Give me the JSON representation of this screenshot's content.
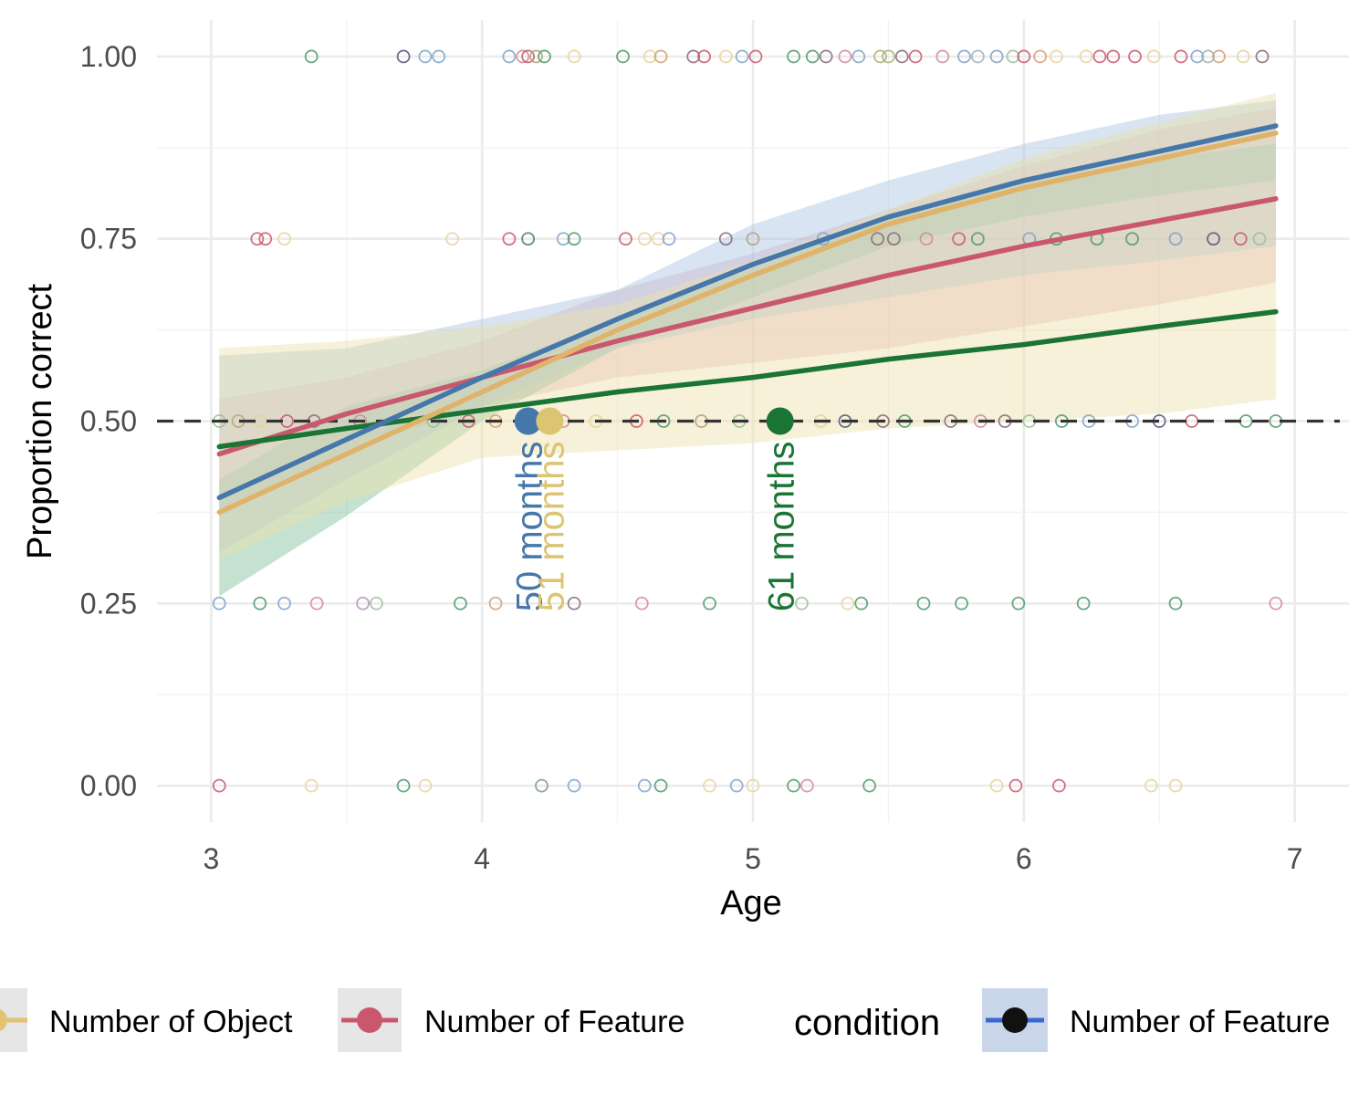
{
  "chart_data": {
    "type": "line",
    "xlabel": "Age",
    "ylabel": "Proportion correct",
    "xlim": [
      2.8,
      7.2
    ],
    "ylim": [
      -0.05,
      1.05
    ],
    "x_ticks": [
      3,
      4,
      5,
      6,
      7
    ],
    "y_ticks": [
      0.0,
      0.25,
      0.5,
      0.75,
      1.0
    ],
    "x_tick_labels": [
      "3",
      "4",
      "5",
      "6",
      "7"
    ],
    "y_tick_labels": [
      "0.00",
      "0.25",
      "0.50",
      "0.75",
      "1.00"
    ],
    "grid": true,
    "reference_line": {
      "y": 0.5,
      "style": "dashed",
      "color": "#333333"
    },
    "series": [
      {
        "key": "pink",
        "color": "#c9586e",
        "band_color": "#e8b4c0",
        "x": [
          3.03,
          3.5,
          4.0,
          4.5,
          5.0,
          5.5,
          6.0,
          6.5,
          6.93
        ],
        "y": [
          0.455,
          0.51,
          0.56,
          0.61,
          0.655,
          0.7,
          0.74,
          0.775,
          0.805
        ],
        "lower": [
          0.37,
          0.46,
          0.52,
          0.56,
          0.58,
          0.6,
          0.63,
          0.66,
          0.69
        ],
        "upper": [
          0.53,
          0.56,
          0.61,
          0.68,
          0.73,
          0.79,
          0.85,
          0.9,
          0.93
        ]
      },
      {
        "key": "green",
        "color": "#1a7535",
        "band_color": "#7fbf9a",
        "x": [
          3.03,
          3.5,
          4.0,
          4.5,
          5.0,
          5.5,
          6.0,
          6.5,
          6.93
        ],
        "y": [
          0.465,
          0.49,
          0.515,
          0.54,
          0.56,
          0.585,
          0.605,
          0.63,
          0.65
        ],
        "lower": [
          0.26,
          0.37,
          0.5,
          0.6,
          0.67,
          0.74,
          0.78,
          0.81,
          0.83
        ],
        "upper": [
          0.42,
          0.52,
          0.57,
          0.64,
          0.71,
          0.78,
          0.83,
          0.86,
          0.88
        ]
      },
      {
        "key": "blue",
        "color": "#4577ab",
        "band_color": "#a9c3e0",
        "x": [
          3.03,
          3.5,
          4.0,
          4.5,
          5.0,
          5.5,
          6.0,
          6.5,
          6.93
        ],
        "y": [
          0.395,
          0.475,
          0.56,
          0.64,
          0.715,
          0.78,
          0.83,
          0.87,
          0.905
        ],
        "lower": [
          0.32,
          0.42,
          0.52,
          0.6,
          0.64,
          0.67,
          0.7,
          0.72,
          0.74
        ],
        "upper": [
          0.59,
          0.6,
          0.64,
          0.68,
          0.77,
          0.83,
          0.88,
          0.92,
          0.94
        ]
      },
      {
        "key": "tan",
        "color": "#e0b36a",
        "band_color": "#ebe0a8",
        "x": [
          3.03,
          3.5,
          4.0,
          4.5,
          5.0,
          5.5,
          6.0,
          6.5,
          6.93
        ],
        "y": [
          0.375,
          0.455,
          0.54,
          0.625,
          0.7,
          0.77,
          0.82,
          0.86,
          0.895
        ],
        "lower": [
          0.31,
          0.39,
          0.45,
          0.46,
          0.47,
          0.49,
          0.5,
          0.51,
          0.53
        ],
        "upper": [
          0.6,
          0.61,
          0.63,
          0.66,
          0.72,
          0.79,
          0.86,
          0.91,
          0.95
        ]
      }
    ],
    "threshold_markers": [
      {
        "x": 4.17,
        "y": 0.5,
        "label": "50 months",
        "color": "#4577ab"
      },
      {
        "x": 4.25,
        "y": 0.5,
        "label": "51 months",
        "color": "#dcc472"
      },
      {
        "x": 5.1,
        "y": 0.5,
        "label": "61 months",
        "color": "#1a7535"
      }
    ],
    "raw_points": [
      [
        3.37,
        1.0,
        "#4e9a6a"
      ],
      [
        3.71,
        1.0,
        "#555577"
      ],
      [
        3.79,
        1.0,
        "#7fa3c8"
      ],
      [
        3.84,
        1.0,
        "#7fa3c8"
      ],
      [
        4.1,
        1.0,
        "#7fa3c8"
      ],
      [
        4.15,
        1.0,
        "#d48a9a"
      ],
      [
        4.17,
        1.0,
        "#c9586e"
      ],
      [
        4.2,
        1.0,
        "#b3a07a"
      ],
      [
        4.23,
        1.0,
        "#4e9a6a"
      ],
      [
        4.34,
        1.0,
        "#e6d49a"
      ],
      [
        4.52,
        1.0,
        "#4e9a6a"
      ],
      [
        4.62,
        1.0,
        "#e6d49a"
      ],
      [
        4.66,
        1.0,
        "#d4a070"
      ],
      [
        4.78,
        1.0,
        "#8a6a7a"
      ],
      [
        4.82,
        1.0,
        "#c9586e"
      ],
      [
        4.9,
        1.0,
        "#e6d49a"
      ],
      [
        4.96,
        1.0,
        "#7fa3c8"
      ],
      [
        5.01,
        1.0,
        "#c9586e"
      ],
      [
        5.15,
        1.0,
        "#4e9a6a"
      ],
      [
        5.22,
        1.0,
        "#4e9a6a"
      ],
      [
        5.27,
        1.0,
        "#8a6a7a"
      ],
      [
        5.34,
        1.0,
        "#d48a9a"
      ],
      [
        5.39,
        1.0,
        "#7fa3c8"
      ],
      [
        5.47,
        1.0,
        "#a8b070"
      ],
      [
        5.5,
        1.0,
        "#a8b070"
      ],
      [
        5.55,
        1.0,
        "#8a6a7a"
      ],
      [
        5.6,
        1.0,
        "#c9586e"
      ],
      [
        5.7,
        1.0,
        "#d48a9a"
      ],
      [
        5.78,
        1.0,
        "#7fa3c8"
      ],
      [
        5.83,
        1.0,
        "#a0b0b8"
      ],
      [
        5.9,
        1.0,
        "#7fa3c8"
      ],
      [
        5.96,
        1.0,
        "#9bbf9a"
      ],
      [
        6.0,
        1.0,
        "#c9586e"
      ],
      [
        6.06,
        1.0,
        "#d4a070"
      ],
      [
        6.12,
        1.0,
        "#e6d49a"
      ],
      [
        6.23,
        1.0,
        "#e6d49a"
      ],
      [
        6.28,
        1.0,
        "#c9586e"
      ],
      [
        6.33,
        1.0,
        "#c9586e"
      ],
      [
        6.41,
        1.0,
        "#c9586e"
      ],
      [
        6.48,
        1.0,
        "#e6d49a"
      ],
      [
        6.58,
        1.0,
        "#c9586e"
      ],
      [
        6.64,
        1.0,
        "#7fa3c8"
      ],
      [
        6.68,
        1.0,
        "#a0b0b8"
      ],
      [
        6.72,
        1.0,
        "#d4a070"
      ],
      [
        6.81,
        1.0,
        "#e6d49a"
      ],
      [
        6.88,
        1.0,
        "#8a6a7a"
      ],
      [
        3.17,
        0.75,
        "#c9586e"
      ],
      [
        3.2,
        0.75,
        "#c9586e"
      ],
      [
        3.27,
        0.75,
        "#e6d49a"
      ],
      [
        3.89,
        0.75,
        "#e6d49a"
      ],
      [
        4.1,
        0.75,
        "#c9586e"
      ],
      [
        4.17,
        0.75,
        "#4e7a6a"
      ],
      [
        4.3,
        0.75,
        "#7fa3c8"
      ],
      [
        4.34,
        0.75,
        "#4e9a6a"
      ],
      [
        4.53,
        0.75,
        "#c9586e"
      ],
      [
        4.6,
        0.75,
        "#e6d49a"
      ],
      [
        4.65,
        0.75,
        "#e6d49a"
      ],
      [
        4.69,
        0.75,
        "#7fa3c8"
      ],
      [
        4.9,
        0.75,
        "#8a6a7a"
      ],
      [
        5.0,
        0.75,
        "#b3a07a"
      ],
      [
        5.26,
        0.75,
        "#7fa3c8"
      ],
      [
        5.46,
        0.75,
        "#8a6a7a"
      ],
      [
        5.52,
        0.75,
        "#8a6a7a"
      ],
      [
        5.64,
        0.75,
        "#d48a9a"
      ],
      [
        5.76,
        0.75,
        "#c9586e"
      ],
      [
        5.83,
        0.75,
        "#4e9a6a"
      ],
      [
        6.02,
        0.75,
        "#7fa3c8"
      ],
      [
        6.12,
        0.75,
        "#4e9a6a"
      ],
      [
        6.27,
        0.75,
        "#4e9a6a"
      ],
      [
        6.4,
        0.75,
        "#4e9a6a"
      ],
      [
        6.56,
        0.75,
        "#7fa3c8"
      ],
      [
        6.7,
        0.75,
        "#555577"
      ],
      [
        6.8,
        0.75,
        "#c9586e"
      ],
      [
        6.87,
        0.75,
        "#9bbf9a"
      ],
      [
        3.03,
        0.5,
        "#9bbf9a"
      ],
      [
        3.1,
        0.5,
        "#a8b070"
      ],
      [
        3.18,
        0.5,
        "#e6d49a"
      ],
      [
        3.28,
        0.5,
        "#c9586e"
      ],
      [
        3.38,
        0.5,
        "#8a6a7a"
      ],
      [
        3.55,
        0.5,
        "#d48a9a"
      ],
      [
        3.74,
        0.5,
        "#e6d49a"
      ],
      [
        3.82,
        0.5,
        "#9bbf9a"
      ],
      [
        3.95,
        0.5,
        "#c9586e"
      ],
      [
        4.05,
        0.5,
        "#d4a070"
      ],
      [
        4.3,
        0.5,
        "#d48a9a"
      ],
      [
        4.42,
        0.5,
        "#e6d49a"
      ],
      [
        4.57,
        0.5,
        "#c9586e"
      ],
      [
        4.67,
        0.5,
        "#4e9a6a"
      ],
      [
        4.81,
        0.5,
        "#b3a07a"
      ],
      [
        4.95,
        0.5,
        "#9bbf9a"
      ],
      [
        5.25,
        0.5,
        "#e6d49a"
      ],
      [
        5.34,
        0.5,
        "#555577"
      ],
      [
        5.48,
        0.5,
        "#8a6a7a"
      ],
      [
        5.56,
        0.5,
        "#4e9a6a"
      ],
      [
        5.73,
        0.5,
        "#8a6a7a"
      ],
      [
        5.84,
        0.5,
        "#d48a9a"
      ],
      [
        5.93,
        0.5,
        "#8a6a7a"
      ],
      [
        6.02,
        0.5,
        "#9bbf9a"
      ],
      [
        6.14,
        0.5,
        "#4e9a6a"
      ],
      [
        6.24,
        0.5,
        "#7fa3c8"
      ],
      [
        6.4,
        0.5,
        "#7fa3c8"
      ],
      [
        6.5,
        0.5,
        "#555577"
      ],
      [
        6.62,
        0.5,
        "#c9586e"
      ],
      [
        6.82,
        0.5,
        "#4e9a6a"
      ],
      [
        6.93,
        0.5,
        "#4e9a6a"
      ],
      [
        3.03,
        0.25,
        "#7fa3c8"
      ],
      [
        3.18,
        0.25,
        "#4e9a6a"
      ],
      [
        3.27,
        0.25,
        "#7fa3c8"
      ],
      [
        3.39,
        0.25,
        "#d48a9a"
      ],
      [
        3.56,
        0.25,
        "#b490b8"
      ],
      [
        3.61,
        0.25,
        "#9bbf9a"
      ],
      [
        3.92,
        0.25,
        "#4e9a6a"
      ],
      [
        4.05,
        0.25,
        "#d4a070"
      ],
      [
        4.34,
        0.25,
        "#8a6a7a"
      ],
      [
        4.59,
        0.25,
        "#d48a9a"
      ],
      [
        4.84,
        0.25,
        "#4e9a6a"
      ],
      [
        5.18,
        0.25,
        "#9bbf9a"
      ],
      [
        5.35,
        0.25,
        "#e6d49a"
      ],
      [
        5.4,
        0.25,
        "#4e9a6a"
      ],
      [
        5.63,
        0.25,
        "#4e9a6a"
      ],
      [
        5.77,
        0.25,
        "#4e9a6a"
      ],
      [
        5.98,
        0.25,
        "#4e9a6a"
      ],
      [
        6.22,
        0.25,
        "#4e9a6a"
      ],
      [
        6.56,
        0.25,
        "#4e9a6a"
      ],
      [
        6.93,
        0.25,
        "#d48a9a"
      ],
      [
        3.03,
        0.0,
        "#c9586e"
      ],
      [
        3.37,
        0.0,
        "#e6d49a"
      ],
      [
        3.71,
        0.0,
        "#4e9a6a"
      ],
      [
        3.79,
        0.0,
        "#e6d49a"
      ],
      [
        4.22,
        0.0,
        "#7a9a8a"
      ],
      [
        4.34,
        0.0,
        "#7fa3c8"
      ],
      [
        4.6,
        0.0,
        "#7fa3c8"
      ],
      [
        4.66,
        0.0,
        "#4e9a6a"
      ],
      [
        4.84,
        0.0,
        "#e6d49a"
      ],
      [
        4.94,
        0.0,
        "#7fa3c8"
      ],
      [
        5.0,
        0.0,
        "#e6d49a"
      ],
      [
        5.15,
        0.0,
        "#4e9a6a"
      ],
      [
        5.2,
        0.0,
        "#d48a9a"
      ],
      [
        5.43,
        0.0,
        "#4e9a6a"
      ],
      [
        5.9,
        0.0,
        "#e6d49a"
      ],
      [
        5.97,
        0.0,
        "#c9586e"
      ],
      [
        6.13,
        0.0,
        "#c9586e"
      ],
      [
        6.47,
        0.0,
        "#e6d49a"
      ],
      [
        6.56,
        0.0,
        "#e6d49a"
      ]
    ],
    "legend": {
      "placement": "bottom",
      "title": "condition",
      "entries": [
        {
          "label": "Number of Object",
          "color": "#e0c472",
          "key_bg": "#e6e6e6"
        },
        {
          "label": "Number of Feature",
          "color": "#c9586e",
          "key_bg": "#e6e6e6"
        },
        {
          "label": "Number of Feature",
          "color": "#111111",
          "key_bg": "#c9d6ea",
          "line_color": "#3a66d4"
        }
      ]
    }
  }
}
